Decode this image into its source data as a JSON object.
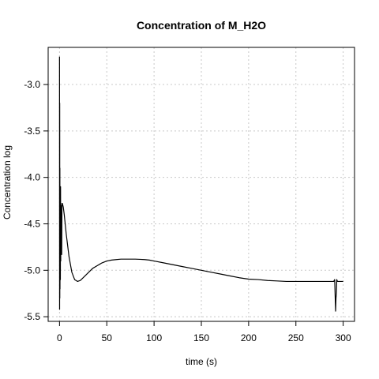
{
  "chart_data": {
    "type": "line",
    "title": "Concentration of M_H2O",
    "xlabel": "time (s)",
    "ylabel": "Concentration log",
    "xlim": [
      -12,
      312
    ],
    "ylim": [
      -5.55,
      -2.6
    ],
    "x_ticks": [
      0,
      50,
      100,
      150,
      200,
      250,
      300
    ],
    "y_ticks": [
      -3.0,
      -3.5,
      -4.0,
      -4.5,
      -5.0,
      -5.5
    ],
    "x_tick_labels": [
      "0",
      "50",
      "100",
      "150",
      "200",
      "250",
      "300"
    ],
    "y_tick_labels": [
      "-3.0",
      "-3.5",
      "-4.0",
      "-4.5",
      "-5.0",
      "-5.5"
    ],
    "grid": true,
    "line_color": "#000000",
    "grid_color": "#c8c8c8",
    "series": [
      {
        "x": [
          0.0,
          0.1,
          0.2,
          0.3,
          0.4,
          0.5,
          0.7,
          0.9,
          1.1,
          1.3,
          1.5,
          1.7,
          2.0,
          2.3,
          2.6,
          3,
          4,
          5,
          7,
          10,
          13,
          16,
          19,
          22,
          26,
          30,
          35,
          40,
          45,
          50,
          55,
          60,
          65,
          70,
          75,
          80,
          85,
          90,
          95,
          100,
          110,
          120,
          130,
          140,
          150,
          160,
          170,
          180,
          190,
          200,
          210,
          220,
          230,
          240,
          250,
          260,
          270,
          280,
          290,
          291,
          292,
          292.4,
          292.8,
          293.2,
          294,
          296,
          298,
          300
        ],
        "y": [
          -2.7,
          -5.42,
          -3.2,
          -5.3,
          -3.9,
          -5.2,
          -4.3,
          -5.1,
          -4.1,
          -4.9,
          -4.3,
          -4.83,
          -4.4,
          -4.83,
          -4.28,
          -4.28,
          -4.32,
          -4.4,
          -4.6,
          -4.85,
          -5.02,
          -5.1,
          -5.12,
          -5.11,
          -5.07,
          -5.03,
          -4.98,
          -4.95,
          -4.92,
          -4.9,
          -4.89,
          -4.885,
          -4.88,
          -4.88,
          -4.88,
          -4.88,
          -4.882,
          -4.885,
          -4.89,
          -4.9,
          -4.92,
          -4.94,
          -4.96,
          -4.98,
          -5.0,
          -5.02,
          -5.04,
          -5.06,
          -5.08,
          -5.095,
          -5.1,
          -5.11,
          -5.115,
          -5.12,
          -5.12,
          -5.12,
          -5.12,
          -5.12,
          -5.12,
          -5.1,
          -5.44,
          -5.3,
          -5.25,
          -5.1,
          -5.12,
          -5.12,
          -5.12,
          -5.12
        ]
      }
    ]
  }
}
